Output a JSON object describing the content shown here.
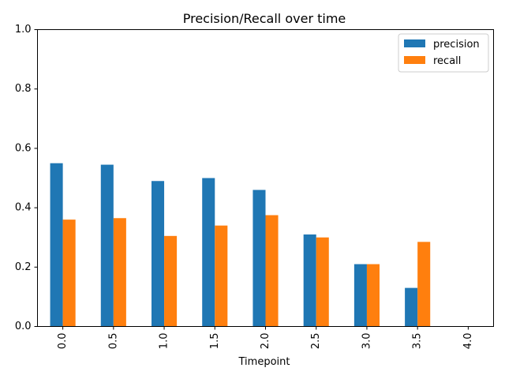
{
  "chart_data": {
    "type": "bar",
    "title": "Precision/Recall over time",
    "xlabel": "Timepoint",
    "ylabel": "",
    "categories": [
      "0.0",
      "0.5",
      "1.0",
      "1.5",
      "2.0",
      "2.5",
      "3.0",
      "3.5",
      "4.0"
    ],
    "series": [
      {
        "name": "precision",
        "color": "#1f77b4",
        "values": [
          0.55,
          0.545,
          0.49,
          0.5,
          0.46,
          0.31,
          0.21,
          0.13,
          0
        ]
      },
      {
        "name": "recall",
        "color": "#ff7f0e",
        "values": [
          0.36,
          0.365,
          0.305,
          0.34,
          0.375,
          0.3,
          0.21,
          0.285,
          0
        ]
      }
    ],
    "ylim": [
      0,
      1
    ],
    "yticks": [
      "0.0",
      "0.2",
      "0.4",
      "0.6",
      "0.8",
      "1.0"
    ],
    "legend": "top-right",
    "grid": false
  }
}
